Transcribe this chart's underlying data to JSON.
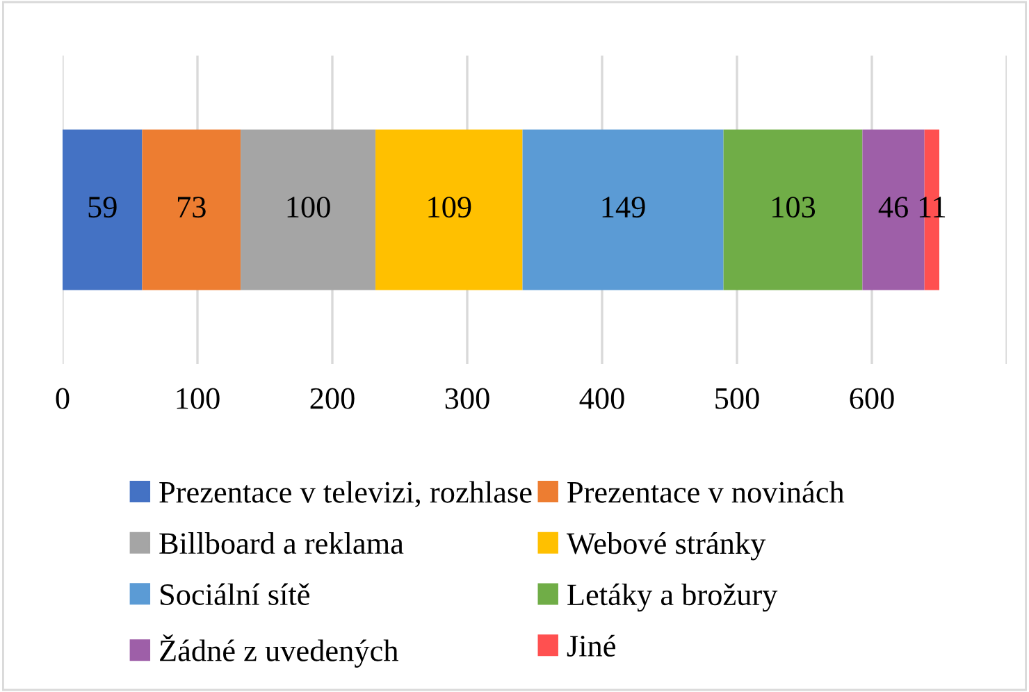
{
  "chart_data": {
    "type": "bar",
    "orientation": "horizontal",
    "stacked": true,
    "categories": [
      null
    ],
    "series": [
      {
        "name": "Prezentace v televizi, rozhlase",
        "color": "#4472c4",
        "values": [
          59
        ]
      },
      {
        "name": "Prezentace v novinách",
        "color": "#ed7d31",
        "values": [
          73
        ]
      },
      {
        "name": "Billboard a reklama",
        "color": "#a5a5a5",
        "values": [
          100
        ]
      },
      {
        "name": "Webové stránky",
        "color": "#ffc000",
        "values": [
          109
        ]
      },
      {
        "name": "Sociální sítě",
        "color": "#5b9bd5",
        "values": [
          149
        ]
      },
      {
        "name": "Letáky a brožury",
        "color": "#70ad47",
        "values": [
          103
        ]
      },
      {
        "name": "Žádné z uvedených",
        "color": "#9e5fa8",
        "values": [
          46
        ]
      },
      {
        "name": "Jiné",
        "color": "#ff5050",
        "values": [
          11
        ]
      }
    ],
    "xlim": [
      0,
      700
    ],
    "xticks": [
      0,
      100,
      200,
      300,
      400,
      500,
      600,
      {
        "value": 700,
        "label": null
      }
    ],
    "grid": "x",
    "legend": "bottom",
    "data_labels": true
  }
}
